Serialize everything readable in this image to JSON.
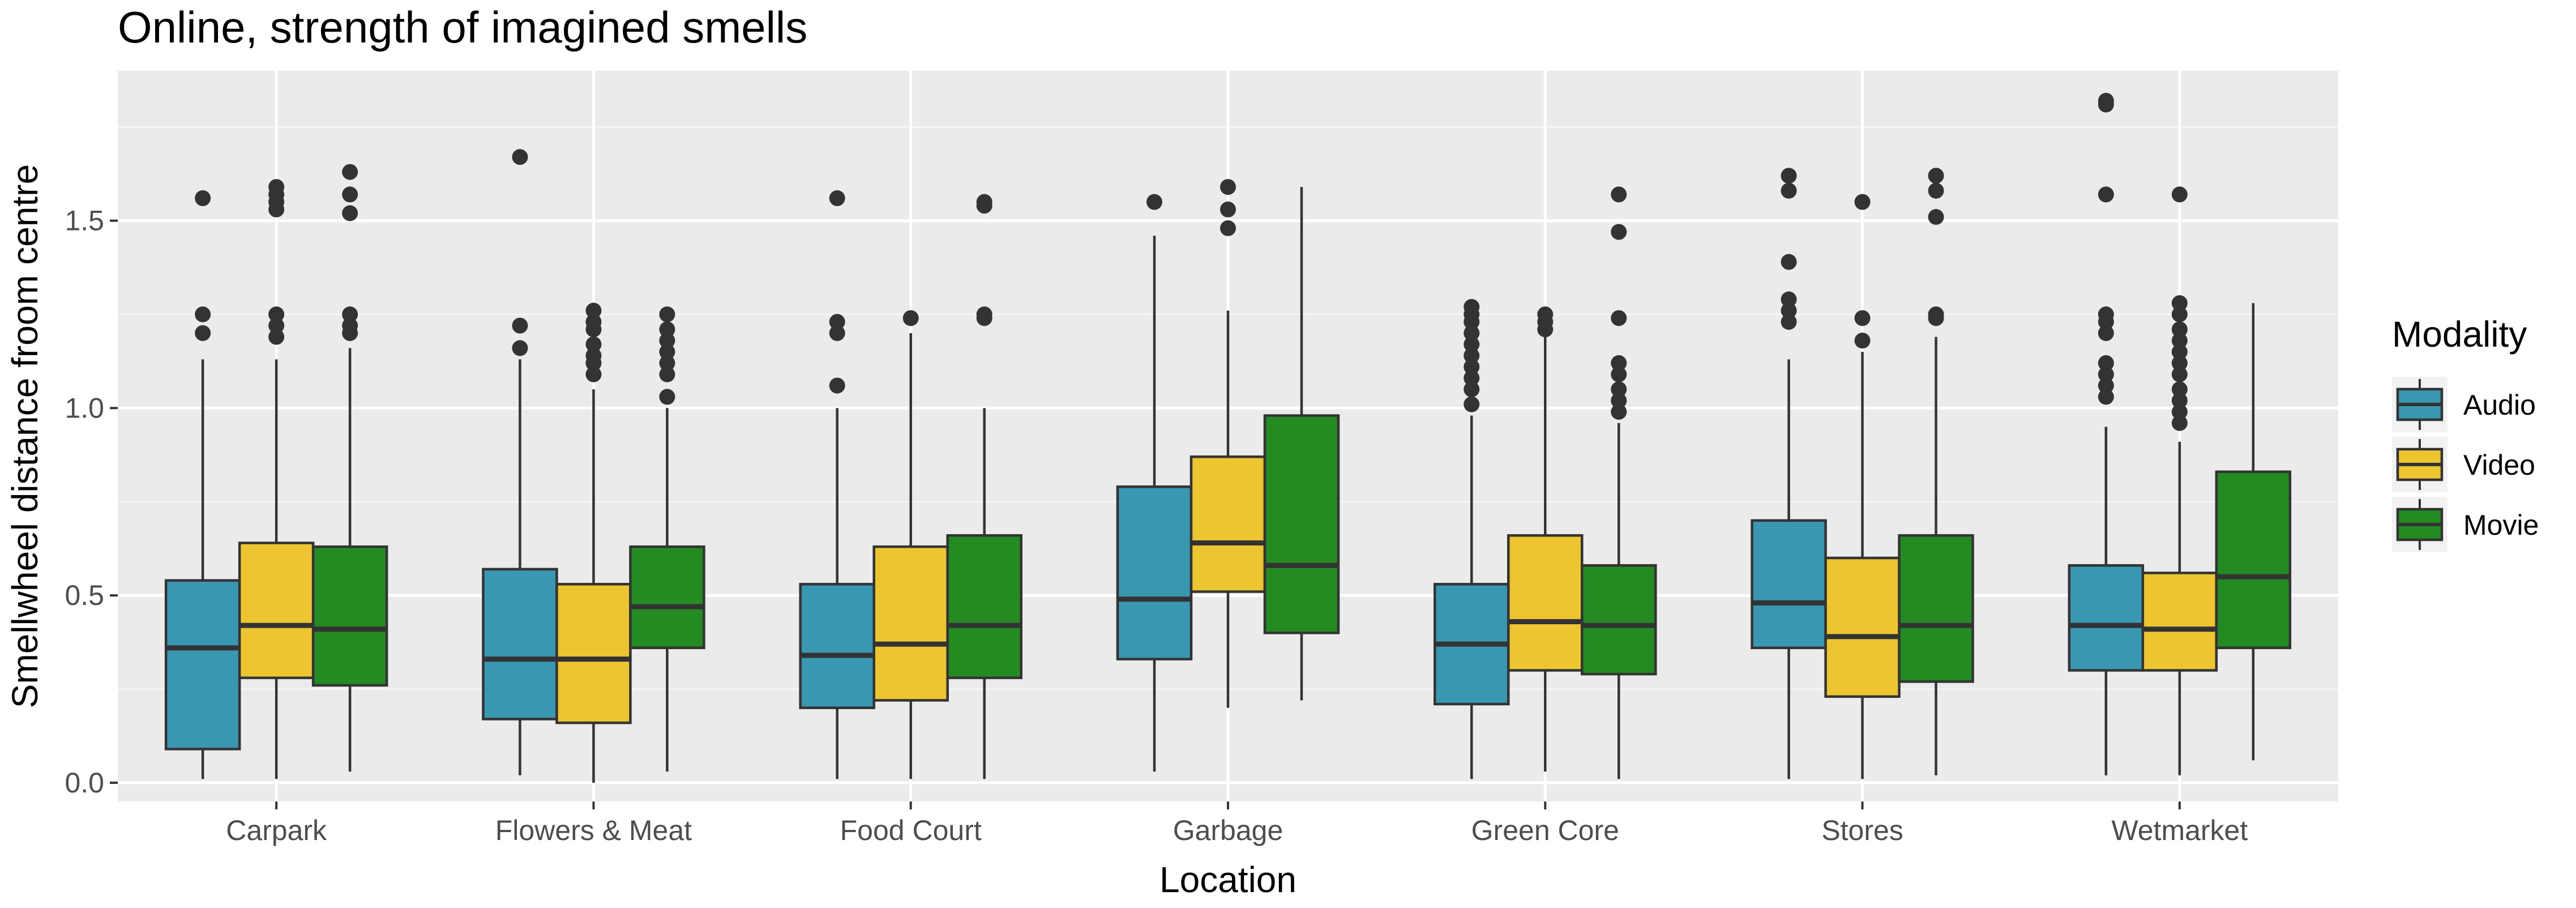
{
  "chart_data": {
    "type": "boxplot",
    "title": "Online, strength of imagined smells",
    "xlabel": "Location",
    "ylabel": "Smellwheel distance froom centre",
    "ylim": [
      -0.05,
      1.9
    ],
    "yticks": [
      0.0,
      0.5,
      1.0,
      1.5
    ],
    "ytick_labels": [
      "0.0",
      "0.5",
      "1.0",
      "1.5"
    ],
    "grid": true,
    "legend": {
      "title": "Modality",
      "placement": "right",
      "entries": [
        "Audio",
        "Video",
        "Movie"
      ]
    },
    "colors": {
      "Audio": "#3a97b2",
      "Video": "#ecc531",
      "Movie": "#238b22"
    },
    "categories": [
      "Carpark",
      "Flowers & Meat",
      "Food Court",
      "Garbage",
      "Green Core",
      "Stores",
      "Wetmarket"
    ],
    "series": [
      {
        "name": "Audio",
        "boxes": [
          {
            "min": 0.01,
            "q1": 0.09,
            "median": 0.36,
            "q3": 0.54,
            "max": 1.13,
            "outliers": [
              1.2,
              1.25,
              1.56
            ]
          },
          {
            "min": 0.02,
            "q1": 0.17,
            "median": 0.33,
            "q3": 0.57,
            "max": 1.13,
            "outliers": [
              1.16,
              1.22,
              1.67
            ]
          },
          {
            "min": 0.01,
            "q1": 0.2,
            "median": 0.34,
            "q3": 0.53,
            "max": 1.0,
            "outliers": [
              1.06,
              1.2,
              1.23,
              1.56
            ]
          },
          {
            "min": 0.03,
            "q1": 0.33,
            "median": 0.49,
            "q3": 0.79,
            "max": 1.46,
            "outliers": [
              1.55
            ]
          },
          {
            "min": 0.01,
            "q1": 0.21,
            "median": 0.37,
            "q3": 0.53,
            "max": 0.98,
            "outliers": [
              1.01,
              1.05,
              1.08,
              1.11,
              1.14,
              1.17,
              1.2,
              1.23,
              1.25,
              1.27
            ]
          },
          {
            "min": 0.01,
            "q1": 0.36,
            "median": 0.48,
            "q3": 0.7,
            "max": 1.13,
            "outliers": [
              1.23,
              1.26,
              1.29,
              1.39,
              1.58,
              1.62
            ]
          },
          {
            "min": 0.02,
            "q1": 0.3,
            "median": 0.42,
            "q3": 0.58,
            "max": 0.95,
            "outliers": [
              1.03,
              1.06,
              1.09,
              1.12,
              1.2,
              1.23,
              1.25,
              1.57,
              1.81,
              1.82
            ]
          }
        ]
      },
      {
        "name": "Video",
        "boxes": [
          {
            "min": 0.01,
            "q1": 0.28,
            "median": 0.42,
            "q3": 0.64,
            "max": 1.13,
            "outliers": [
              1.19,
              1.22,
              1.25,
              1.53,
              1.55,
              1.57,
              1.59
            ]
          },
          {
            "min": 0.0,
            "q1": 0.16,
            "median": 0.33,
            "q3": 0.53,
            "max": 1.05,
            "outliers": [
              1.09,
              1.12,
              1.14,
              1.17,
              1.21,
              1.23,
              1.26
            ]
          },
          {
            "min": 0.01,
            "q1": 0.22,
            "median": 0.37,
            "q3": 0.63,
            "max": 1.2,
            "outliers": [
              1.24
            ]
          },
          {
            "min": 0.2,
            "q1": 0.51,
            "median": 0.64,
            "q3": 0.87,
            "max": 1.26,
            "outliers": [
              1.48,
              1.53,
              1.59
            ]
          },
          {
            "min": 0.03,
            "q1": 0.3,
            "median": 0.43,
            "q3": 0.66,
            "max": 1.2,
            "outliers": [
              1.21,
              1.23,
              1.25
            ]
          },
          {
            "min": 0.01,
            "q1": 0.23,
            "median": 0.39,
            "q3": 0.6,
            "max": 1.15,
            "outliers": [
              1.18,
              1.24,
              1.55
            ]
          },
          {
            "min": 0.02,
            "q1": 0.3,
            "median": 0.41,
            "q3": 0.56,
            "max": 0.91,
            "outliers": [
              0.96,
              0.99,
              1.02,
              1.05,
              1.09,
              1.12,
              1.15,
              1.18,
              1.21,
              1.25,
              1.28,
              1.57
            ]
          }
        ]
      },
      {
        "name": "Movie",
        "boxes": [
          {
            "min": 0.03,
            "q1": 0.26,
            "median": 0.41,
            "q3": 0.63,
            "max": 1.16,
            "outliers": [
              1.2,
              1.22,
              1.25,
              1.52,
              1.57,
              1.63
            ]
          },
          {
            "min": 0.03,
            "q1": 0.36,
            "median": 0.47,
            "q3": 0.63,
            "max": 1.0,
            "outliers": [
              1.03,
              1.09,
              1.12,
              1.15,
              1.18,
              1.21,
              1.25
            ]
          },
          {
            "min": 0.01,
            "q1": 0.28,
            "median": 0.42,
            "q3": 0.66,
            "max": 1.0,
            "outliers": [
              1.24,
              1.25,
              1.54,
              1.55
            ]
          },
          {
            "min": 0.22,
            "q1": 0.4,
            "median": 0.58,
            "q3": 0.98,
            "max": 1.59,
            "outliers": []
          },
          {
            "min": 0.01,
            "q1": 0.29,
            "median": 0.42,
            "q3": 0.58,
            "max": 0.96,
            "outliers": [
              0.99,
              1.02,
              1.05,
              1.09,
              1.12,
              1.24,
              1.47,
              1.57
            ]
          },
          {
            "min": 0.02,
            "q1": 0.27,
            "median": 0.42,
            "q3": 0.66,
            "max": 1.19,
            "outliers": [
              1.24,
              1.25,
              1.51,
              1.58,
              1.62
            ]
          },
          {
            "min": 0.06,
            "q1": 0.36,
            "median": 0.55,
            "q3": 0.83,
            "max": 1.28,
            "outliers": []
          }
        ]
      }
    ]
  }
}
